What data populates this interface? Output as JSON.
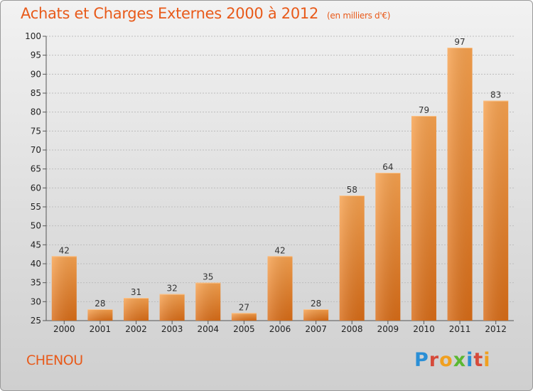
{
  "header": {
    "title": "Achats et Charges Externes 2000 à 2012",
    "unit": "(en milliers d'€)"
  },
  "commune": "CHENOU",
  "logo": {
    "text": "Proxiti"
  },
  "colors": {
    "title": "#e85a1a",
    "bar_light": "#f7a04d",
    "bar_dark": "#d86d18",
    "grid": "#bfbfbf"
  },
  "chart_data": {
    "type": "bar",
    "title": "Achats et Charges Externes 2000 à 2012",
    "subtitle": "(en milliers d'€)",
    "xlabel": "",
    "ylabel": "",
    "categories": [
      "2000",
      "2001",
      "2002",
      "2003",
      "2004",
      "2005",
      "2006",
      "2007",
      "2008",
      "2009",
      "2010",
      "2011",
      "2012"
    ],
    "values": [
      42,
      28,
      31,
      32,
      35,
      27,
      42,
      28,
      58,
      64,
      79,
      97,
      83
    ],
    "ylim": [
      25,
      100
    ],
    "yticks": [
      25,
      30,
      35,
      40,
      45,
      50,
      55,
      60,
      65,
      70,
      75,
      80,
      85,
      90,
      95,
      100
    ],
    "grid": "horizontal dashed",
    "legend": "none"
  }
}
